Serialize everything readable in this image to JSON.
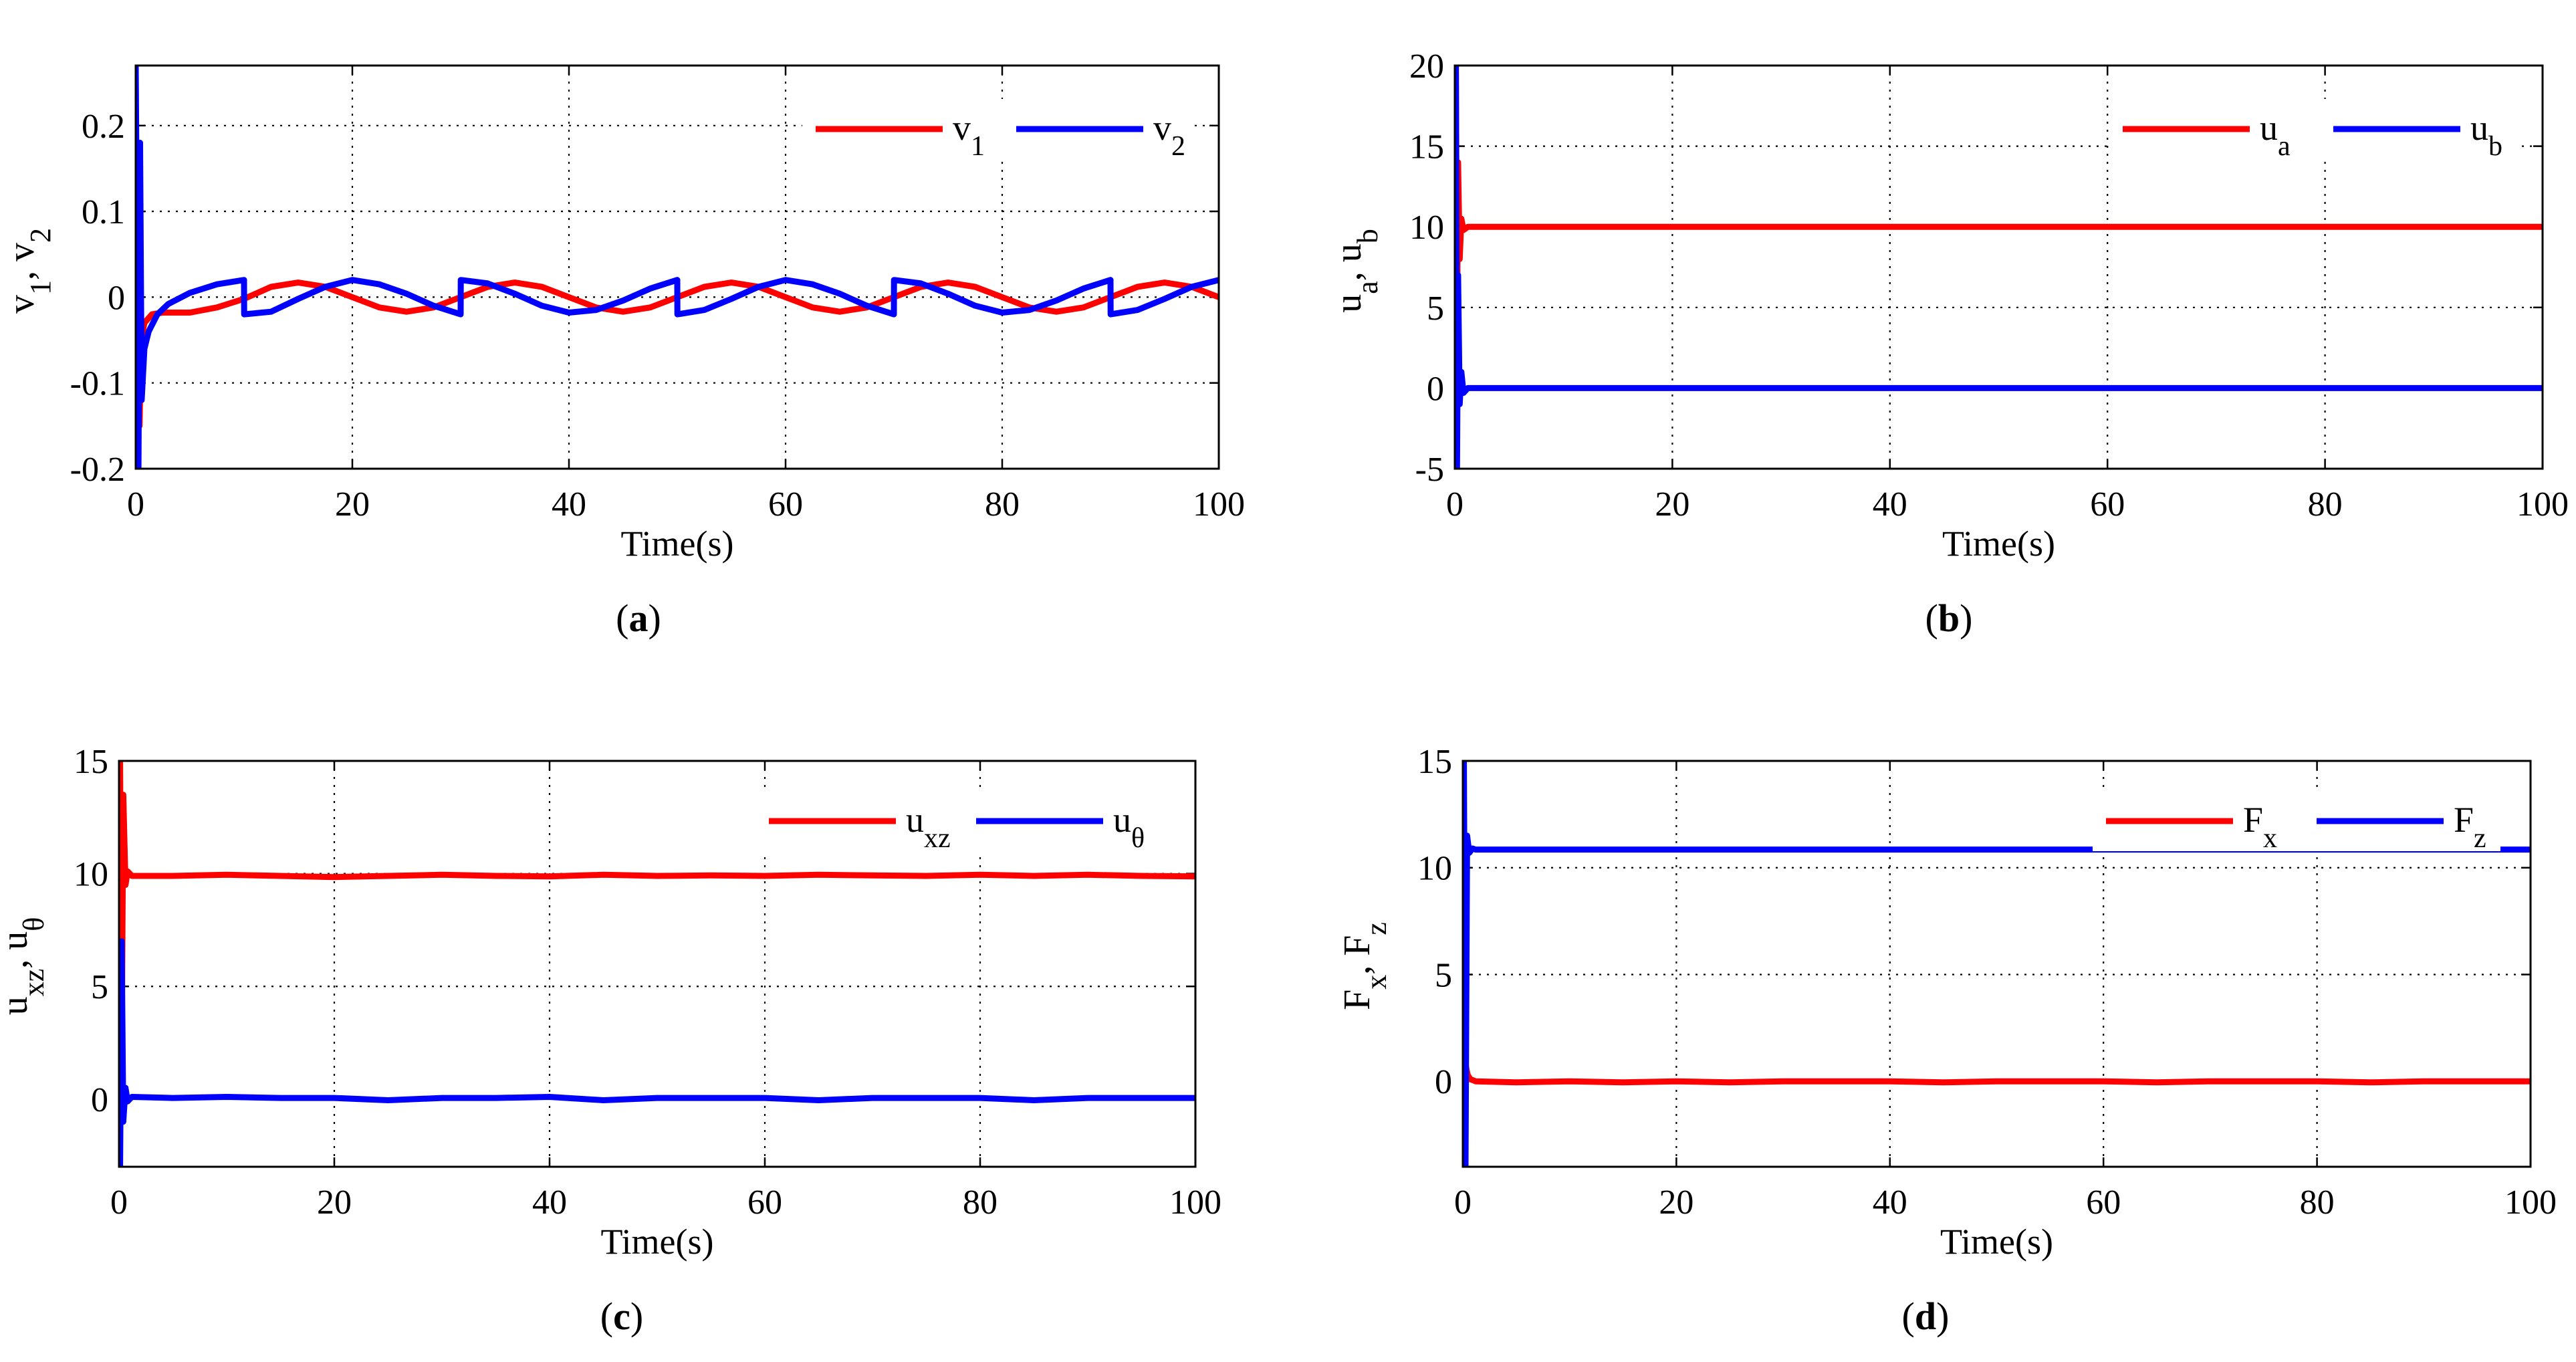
{
  "chart_data": [
    {
      "type": "line",
      "panel_label": "a",
      "xlabel": "Time(s)",
      "ylabel": {
        "parts": [
          [
            "v",
            ""
          ],
          [
            "1",
            "sub"
          ],
          [
            ", v",
            ""
          ],
          [
            "2",
            "sub"
          ]
        ]
      },
      "xlim": [
        0,
        100
      ],
      "ylim": [
        -0.2,
        0.27
      ],
      "xticks": [
        0,
        20,
        40,
        60,
        80,
        100
      ],
      "xtick_labels": [
        "0",
        "20",
        "40",
        "60",
        "80",
        "100"
      ],
      "yticks": [
        -0.2,
        -0.1,
        0,
        0.1,
        0.2
      ],
      "ytick_labels": [
        "-0.2",
        "-0.1",
        "0",
        "0.1",
        "0.2"
      ],
      "grid": true,
      "legend_position": "top-right",
      "series": [
        {
          "name": "v1",
          "legend_base": "v",
          "legend_sub": "1",
          "color": "#ff0000",
          "points": [
            [
              0,
              -0.2
            ],
            [
              0.2,
              0.05
            ],
            [
              0.35,
              -0.15
            ],
            [
              0.5,
              -0.05
            ],
            [
              0.8,
              -0.03
            ],
            [
              1.5,
              -0.02
            ],
            [
              2.5,
              -0.018
            ],
            [
              5,
              -0.018
            ],
            [
              7.5,
              -0.012
            ],
            [
              10,
              -0.002
            ],
            [
              12.5,
              0.012
            ],
            [
              15,
              0.017
            ],
            [
              17.5,
              0.012
            ],
            [
              20,
              0
            ],
            [
              22.5,
              -0.012
            ],
            [
              25,
              -0.017
            ],
            [
              27.5,
              -0.012
            ],
            [
              30,
              0
            ],
            [
              32.5,
              0.012
            ],
            [
              35,
              0.017
            ],
            [
              37.5,
              0.012
            ],
            [
              40,
              0
            ],
            [
              42.5,
              -0.012
            ],
            [
              45,
              -0.017
            ],
            [
              47.5,
              -0.012
            ],
            [
              50,
              0
            ],
            [
              52.5,
              0.012
            ],
            [
              55,
              0.017
            ],
            [
              57.5,
              0.012
            ],
            [
              60,
              0
            ],
            [
              62.5,
              -0.012
            ],
            [
              65,
              -0.017
            ],
            [
              67.5,
              -0.012
            ],
            [
              70,
              0
            ],
            [
              72.5,
              0.012
            ],
            [
              75,
              0.017
            ],
            [
              77.5,
              0.012
            ],
            [
              80,
              0
            ],
            [
              82.5,
              -0.012
            ],
            [
              85,
              -0.017
            ],
            [
              87.5,
              -0.012
            ],
            [
              90,
              0
            ],
            [
              92.5,
              0.012
            ],
            [
              95,
              0.017
            ],
            [
              97.5,
              0.012
            ],
            [
              100,
              0
            ]
          ]
        },
        {
          "name": "v2",
          "legend_base": "v",
          "legend_sub": "2",
          "color": "#0000ff",
          "points": [
            [
              0,
              0.27
            ],
            [
              0.25,
              -0.2
            ],
            [
              0.4,
              0.18
            ],
            [
              0.55,
              -0.12
            ],
            [
              0.8,
              -0.06
            ],
            [
              1.2,
              -0.04
            ],
            [
              2,
              -0.02
            ],
            [
              3,
              -0.008
            ],
            [
              5,
              0.005
            ],
            [
              7.5,
              0.015
            ],
            [
              10,
              0.02
            ],
            [
              10.01,
              -0.02
            ],
            [
              12.5,
              -0.017
            ],
            [
              15,
              -0.002
            ],
            [
              17.5,
              0.012
            ],
            [
              20,
              0.02
            ],
            [
              22.5,
              0.015
            ],
            [
              25,
              0.004
            ],
            [
              27.5,
              -0.01
            ],
            [
              30,
              -0.02
            ],
            [
              30.01,
              0.02
            ],
            [
              32.5,
              0.016
            ],
            [
              35,
              0.004
            ],
            [
              37.5,
              -0.01
            ],
            [
              40,
              -0.018
            ],
            [
              42.5,
              -0.015
            ],
            [
              45,
              -0.004
            ],
            [
              47.5,
              0.01
            ],
            [
              50,
              0.02
            ],
            [
              50.01,
              -0.02
            ],
            [
              52.5,
              -0.015
            ],
            [
              55,
              -0.002
            ],
            [
              57.5,
              0.012
            ],
            [
              60,
              0.02
            ],
            [
              62.5,
              0.015
            ],
            [
              65,
              0.004
            ],
            [
              67.5,
              -0.01
            ],
            [
              70,
              -0.02
            ],
            [
              70.01,
              0.02
            ],
            [
              72.5,
              0.016
            ],
            [
              75,
              0.004
            ],
            [
              77.5,
              -0.01
            ],
            [
              80,
              -0.018
            ],
            [
              82.5,
              -0.015
            ],
            [
              85,
              -0.004
            ],
            [
              87.5,
              0.01
            ],
            [
              90,
              0.02
            ],
            [
              90.01,
              -0.02
            ],
            [
              92.5,
              -0.015
            ],
            [
              95,
              -0.002
            ],
            [
              97.5,
              0.012
            ],
            [
              100,
              0.02
            ]
          ]
        }
      ]
    },
    {
      "type": "line",
      "panel_label": "b",
      "xlabel": "Time(s)",
      "ylabel": {
        "parts": [
          [
            "u",
            ""
          ],
          [
            "a",
            "sub"
          ],
          [
            ", u",
            ""
          ],
          [
            "b",
            "sub"
          ]
        ]
      },
      "xlim": [
        0,
        100
      ],
      "ylim": [
        -5,
        20
      ],
      "xticks": [
        0,
        20,
        40,
        60,
        80,
        100
      ],
      "xtick_labels": [
        "0",
        "20",
        "40",
        "60",
        "80",
        "100"
      ],
      "yticks": [
        -5,
        0,
        5,
        10,
        15,
        20
      ],
      "ytick_labels": [
        "-5",
        "0",
        "5",
        "10",
        "15",
        "20"
      ],
      "grid": true,
      "legend_position": "top-right",
      "series": [
        {
          "name": "ua",
          "legend_base": "u",
          "legend_sub": "a",
          "color": "#ff0000",
          "points": [
            [
              0,
              0
            ],
            [
              0.1,
              20
            ],
            [
              0.2,
              3
            ],
            [
              0.3,
              14
            ],
            [
              0.45,
              8
            ],
            [
              0.6,
              10.5
            ],
            [
              0.8,
              9.8
            ],
            [
              1.2,
              10
            ],
            [
              100,
              10
            ]
          ]
        },
        {
          "name": "ub",
          "legend_base": "u",
          "legend_sub": "b",
          "color": "#0000ff",
          "points": [
            [
              0,
              0
            ],
            [
              0.1,
              20
            ],
            [
              0.2,
              -5
            ],
            [
              0.3,
              7
            ],
            [
              0.45,
              -1
            ],
            [
              0.6,
              1
            ],
            [
              0.8,
              -0.3
            ],
            [
              1.2,
              0
            ],
            [
              100,
              0
            ]
          ]
        }
      ]
    },
    {
      "type": "line",
      "panel_label": "c",
      "xlabel": "Time(s)",
      "ylabel": {
        "parts": [
          [
            "u",
            ""
          ],
          [
            "xz",
            "sub"
          ],
          [
            ", u",
            ""
          ],
          [
            "θ",
            "sub"
          ]
        ]
      },
      "xlim": [
        0,
        100
      ],
      "ylim": [
        -3,
        15
      ],
      "xticks": [
        0,
        20,
        40,
        60,
        80,
        100
      ],
      "xtick_labels": [
        "0",
        "20",
        "40",
        "60",
        "80",
        "100"
      ],
      "yticks": [
        0,
        5,
        10,
        15
      ],
      "ytick_labels": [
        "0",
        "5",
        "10",
        "15"
      ],
      "grid": true,
      "legend_position": "top-right",
      "series": [
        {
          "name": "uxz",
          "legend_base": "u",
          "legend_sub": "xz",
          "color": "#ff0000",
          "points": [
            [
              0,
              0
            ],
            [
              0.1,
              15
            ],
            [
              0.25,
              2
            ],
            [
              0.4,
              13.5
            ],
            [
              0.6,
              9.5
            ],
            [
              0.8,
              10.1
            ],
            [
              1.2,
              9.9
            ],
            [
              5,
              9.9
            ],
            [
              10,
              9.95
            ],
            [
              15,
              9.9
            ],
            [
              20,
              9.85
            ],
            [
              25,
              9.9
            ],
            [
              30,
              9.95
            ],
            [
              35,
              9.9
            ],
            [
              40,
              9.88
            ],
            [
              45,
              9.95
            ],
            [
              50,
              9.9
            ],
            [
              55,
              9.92
            ],
            [
              60,
              9.9
            ],
            [
              65,
              9.95
            ],
            [
              70,
              9.92
            ],
            [
              75,
              9.9
            ],
            [
              80,
              9.95
            ],
            [
              85,
              9.9
            ],
            [
              90,
              9.95
            ],
            [
              95,
              9.9
            ],
            [
              100,
              9.88
            ]
          ]
        },
        {
          "name": "utheta",
          "legend_base": "u",
          "legend_sub": "θ",
          "color": "#0000ff",
          "points": [
            [
              0,
              0
            ],
            [
              0.1,
              -3
            ],
            [
              0.25,
              7
            ],
            [
              0.4,
              -1
            ],
            [
              0.6,
              0.5
            ],
            [
              0.8,
              -0.1
            ],
            [
              1.2,
              0.1
            ],
            [
              5,
              0.05
            ],
            [
              10,
              0.1
            ],
            [
              15,
              0.05
            ],
            [
              20,
              0.05
            ],
            [
              25,
              -0.05
            ],
            [
              30,
              0.05
            ],
            [
              35,
              0.05
            ],
            [
              40,
              0.1
            ],
            [
              45,
              -0.05
            ],
            [
              50,
              0.05
            ],
            [
              55,
              0.05
            ],
            [
              60,
              0.05
            ],
            [
              65,
              -0.05
            ],
            [
              70,
              0.05
            ],
            [
              75,
              0.05
            ],
            [
              80,
              0.05
            ],
            [
              85,
              -0.05
            ],
            [
              90,
              0.05
            ],
            [
              95,
              0.05
            ],
            [
              100,
              0.05
            ]
          ]
        }
      ]
    },
    {
      "type": "line",
      "panel_label": "d",
      "xlabel": "Time(s)",
      "ylabel": {
        "parts": [
          [
            "F",
            ""
          ],
          [
            "x",
            "sub"
          ],
          [
            ", F",
            ""
          ],
          [
            "z",
            "sub"
          ]
        ]
      },
      "xlim": [
        0,
        100
      ],
      "ylim": [
        -4,
        15
      ],
      "xticks": [
        0,
        20,
        40,
        60,
        80,
        100
      ],
      "xtick_labels": [
        "0",
        "20",
        "40",
        "60",
        "80",
        "100"
      ],
      "yticks": [
        0,
        5,
        10,
        15
      ],
      "ytick_labels": [
        "0",
        "5",
        "10",
        "15"
      ],
      "grid": true,
      "legend_position": "top-right",
      "series": [
        {
          "name": "Fx",
          "legend_base": "F",
          "legend_sub": "x",
          "color": "#ff0000",
          "points": [
            [
              0,
              0
            ],
            [
              0.1,
              -4
            ],
            [
              0.25,
              0.8
            ],
            [
              0.45,
              0.3
            ],
            [
              0.7,
              0.1
            ],
            [
              1.2,
              0
            ],
            [
              5,
              -0.05
            ],
            [
              10,
              0
            ],
            [
              15,
              -0.05
            ],
            [
              20,
              0
            ],
            [
              25,
              -0.05
            ],
            [
              30,
              0
            ],
            [
              35,
              0
            ],
            [
              40,
              0
            ],
            [
              45,
              -0.05
            ],
            [
              50,
              0
            ],
            [
              55,
              0
            ],
            [
              60,
              0
            ],
            [
              65,
              -0.05
            ],
            [
              70,
              0
            ],
            [
              75,
              0
            ],
            [
              80,
              0
            ],
            [
              85,
              -0.05
            ],
            [
              90,
              0
            ],
            [
              95,
              0
            ],
            [
              100,
              0
            ]
          ]
        },
        {
          "name": "Fz",
          "legend_base": "F",
          "legend_sub": "z",
          "color": "#0000ff",
          "points": [
            [
              0,
              0
            ],
            [
              0.1,
              15
            ],
            [
              0.25,
              -4
            ],
            [
              0.4,
              11.5
            ],
            [
              0.6,
              10.7
            ],
            [
              0.9,
              10.9
            ],
            [
              1.2,
              10.85
            ],
            [
              100,
              10.85
            ]
          ]
        }
      ]
    }
  ]
}
